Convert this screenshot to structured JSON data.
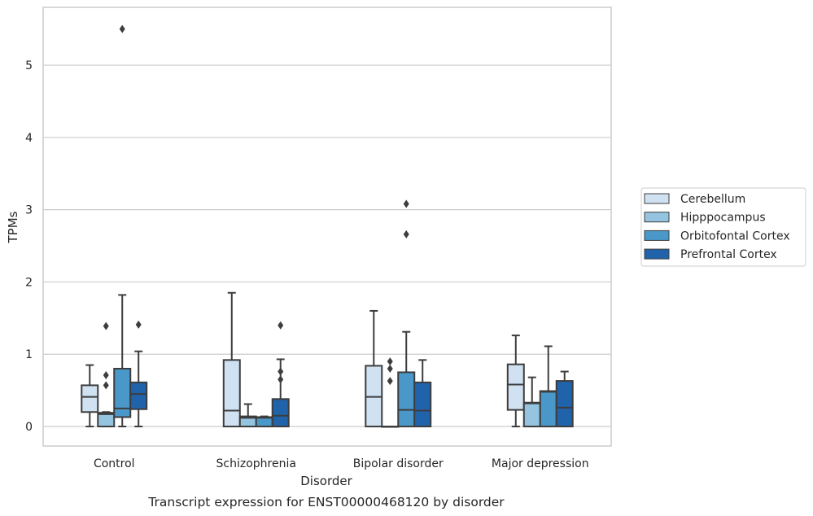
{
  "chart_data": {
    "type": "box",
    "title": "Transcript expression for ENST00000468120 by disorder",
    "xlabel": "Disorder",
    "ylabel": "TPMs",
    "ylim": [
      -0.27,
      5.8
    ],
    "yticks": [
      0,
      1,
      2,
      3,
      4,
      5
    ],
    "grid": true,
    "legend_position": "right",
    "categories": [
      "Control",
      "Schizophrenia",
      "Bipolar disorder",
      "Major depression"
    ],
    "series": [
      {
        "name": "Cerebellum",
        "color": "#d0e1f2",
        "boxes": [
          {
            "whisker_low": 0,
            "q1": 0.2,
            "median": 0.41,
            "q3": 0.57,
            "whisker_high": 0.85,
            "outliers": []
          },
          {
            "whisker_low": 0,
            "q1": 0,
            "median": 0.22,
            "q3": 0.92,
            "whisker_high": 1.85,
            "outliers": []
          },
          {
            "whisker_low": 0,
            "q1": 0,
            "median": 0.41,
            "q3": 0.84,
            "whisker_high": 1.6,
            "outliers": []
          },
          {
            "whisker_low": 0,
            "q1": 0.23,
            "median": 0.58,
            "q3": 0.86,
            "whisker_high": 1.26,
            "outliers": []
          }
        ]
      },
      {
        "name": "Hipppocampus",
        "color": "#94c4df",
        "boxes": [
          {
            "whisker_low": 0,
            "q1": 0,
            "median": 0.17,
            "q3": 0.19,
            "whisker_high": 0.2,
            "outliers": [
              0.57,
              0.71,
              1.39
            ]
          },
          {
            "whisker_low": 0,
            "q1": 0,
            "median": 0.12,
            "q3": 0.14,
            "whisker_high": 0.31,
            "outliers": []
          },
          {
            "whisker_low": 0,
            "q1": 0,
            "median": 0,
            "q3": 0,
            "whisker_high": 0,
            "outliers": [
              0.63,
              0.8,
              0.9
            ]
          },
          {
            "whisker_low": 0,
            "q1": 0,
            "median": 0.32,
            "q3": 0.33,
            "whisker_high": 0.68,
            "outliers": []
          }
        ]
      },
      {
        "name": "Orbitofontal Cortex",
        "color": "#4a98c9",
        "boxes": [
          {
            "whisker_low": 0,
            "q1": 0.13,
            "median": 0.25,
            "q3": 0.8,
            "whisker_high": 1.82,
            "outliers": [
              5.5
            ]
          },
          {
            "whisker_low": 0,
            "q1": 0,
            "median": 0.12,
            "q3": 0.13,
            "whisker_high": 0.14,
            "outliers": []
          },
          {
            "whisker_low": 0,
            "q1": 0,
            "median": 0.23,
            "q3": 0.75,
            "whisker_high": 1.31,
            "outliers": [
              2.66,
              3.08
            ]
          },
          {
            "whisker_low": 0,
            "q1": 0,
            "median": 0.48,
            "q3": 0.49,
            "whisker_high": 1.11,
            "outliers": []
          }
        ]
      },
      {
        "name": "Prefrontal Cortex",
        "color": "#2163aa",
        "boxes": [
          {
            "whisker_low": 0,
            "q1": 0.24,
            "median": 0.45,
            "q3": 0.61,
            "whisker_high": 1.04,
            "outliers": [
              1.41
            ]
          },
          {
            "whisker_low": 0,
            "q1": 0,
            "median": 0.15,
            "q3": 0.38,
            "whisker_high": 0.93,
            "outliers": [
              0.65,
              0.76,
              1.4
            ]
          },
          {
            "whisker_low": 0,
            "q1": 0,
            "median": 0.22,
            "q3": 0.61,
            "whisker_high": 0.92,
            "outliers": []
          },
          {
            "whisker_low": 0,
            "q1": 0,
            "median": 0.26,
            "q3": 0.63,
            "whisker_high": 0.76,
            "outliers": []
          }
        ]
      }
    ]
  }
}
